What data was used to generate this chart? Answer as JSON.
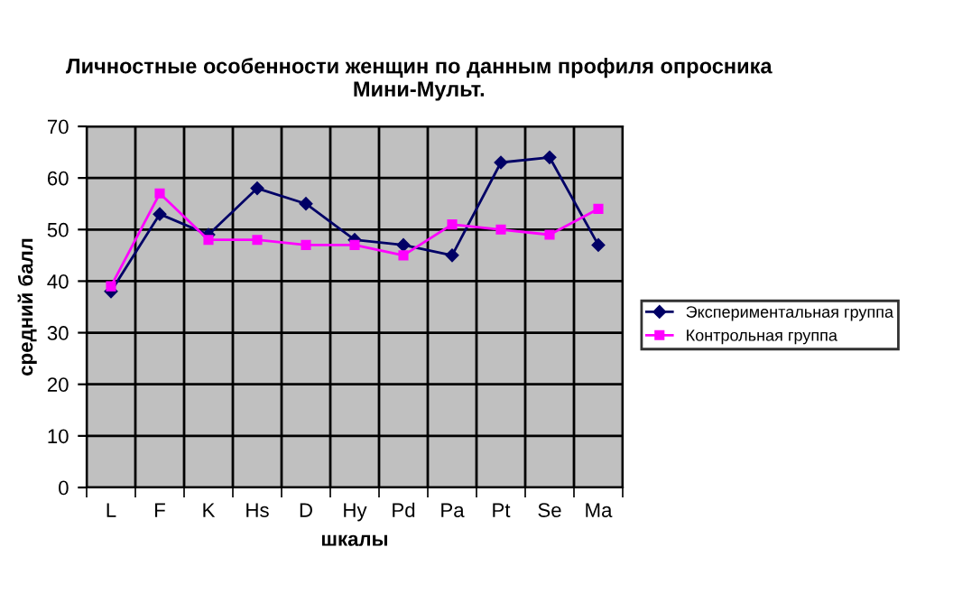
{
  "chart_data": {
    "type": "line",
    "title": "Личностные особенности женщин по данным профиля опросника\nМини-Мульт.",
    "xlabel": "шкалы",
    "ylabel": "средний балл",
    "categories": [
      "L",
      "F",
      "K",
      "Hs",
      "D",
      "Hy",
      "Pd",
      "Pa",
      "Pt",
      "Se",
      "Ma"
    ],
    "series": [
      {
        "name": "Экспериментальная группа",
        "color": "#000066",
        "marker": "diamond",
        "values": [
          38,
          53,
          49,
          58,
          55,
          48,
          47,
          45,
          63,
          64,
          47
        ]
      },
      {
        "name": "Контрольная группа",
        "color": "#ff00ff",
        "marker": "square",
        "values": [
          39,
          57,
          48,
          48,
          47,
          47,
          45,
          51,
          50,
          49,
          54
        ]
      }
    ],
    "ylim": [
      0,
      70
    ],
    "yticks": [
      0,
      10,
      20,
      30,
      40,
      50,
      60,
      70
    ],
    "grid": true,
    "legend": "right",
    "line_style": "solid"
  }
}
